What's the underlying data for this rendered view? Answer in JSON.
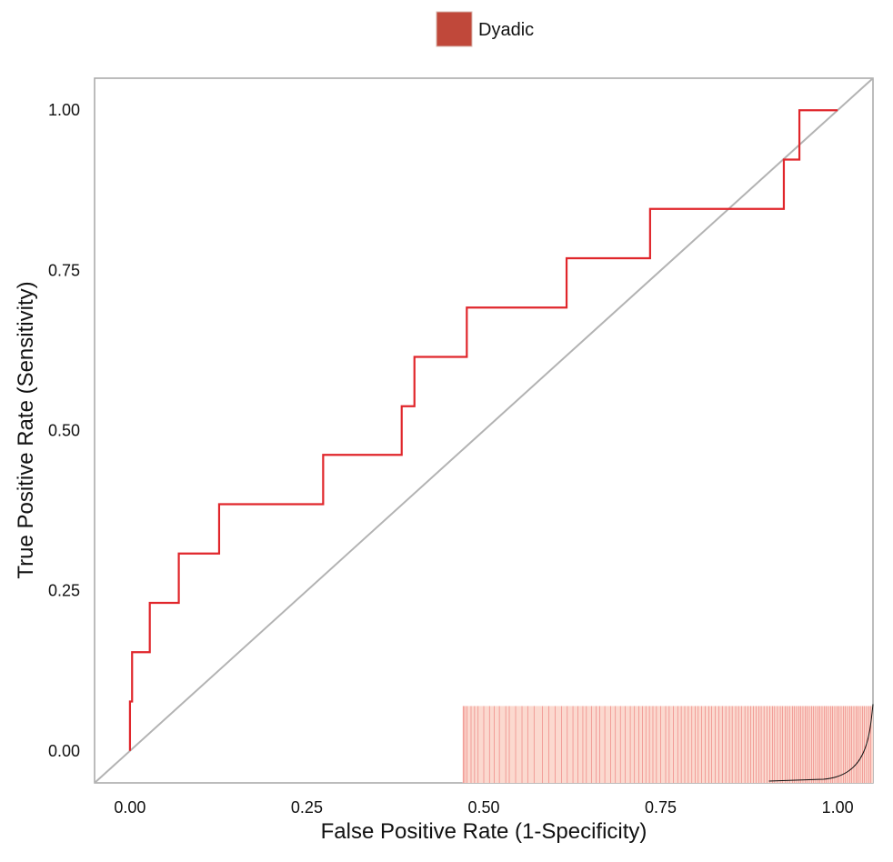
{
  "chart_data": {
    "type": "line",
    "xlabel": "False Positive Rate (1-Specificity)",
    "ylabel": "True Positive Rate (Sensitivity)",
    "xlim": [
      -0.05,
      1.05
    ],
    "ylim": [
      -0.05,
      1.05
    ],
    "x_ticks": [
      0.0,
      0.25,
      0.5,
      0.75,
      1.0
    ],
    "x_tick_labels": [
      "0.00",
      "0.25",
      "0.50",
      "0.75",
      "1.00"
    ],
    "y_ticks": [
      0.0,
      0.25,
      0.5,
      0.75,
      1.0
    ],
    "y_tick_labels": [
      "0.00",
      "0.25",
      "0.50",
      "0.75",
      "1.00"
    ],
    "grid": false,
    "legend_position": "top-center",
    "legend": [
      {
        "name": "Dyadic",
        "color": "#c0483a"
      }
    ],
    "series": [
      {
        "name": "Dyadic",
        "color": "#e0262b",
        "points": [
          [
            0.0,
            0.0
          ],
          [
            0.0,
            0.077
          ],
          [
            0.003,
            0.077
          ],
          [
            0.003,
            0.154
          ],
          [
            0.028,
            0.154
          ],
          [
            0.028,
            0.231
          ],
          [
            0.069,
            0.231
          ],
          [
            0.069,
            0.308
          ],
          [
            0.126,
            0.308
          ],
          [
            0.126,
            0.385
          ],
          [
            0.273,
            0.385
          ],
          [
            0.273,
            0.462
          ],
          [
            0.384,
            0.462
          ],
          [
            0.384,
            0.538
          ],
          [
            0.402,
            0.538
          ],
          [
            0.402,
            0.615
          ],
          [
            0.476,
            0.615
          ],
          [
            0.476,
            0.692
          ],
          [
            0.617,
            0.692
          ],
          [
            0.617,
            0.769
          ],
          [
            0.735,
            0.769
          ],
          [
            0.735,
            0.846
          ],
          [
            0.924,
            0.846
          ],
          [
            0.924,
            0.923
          ],
          [
            0.946,
            0.923
          ],
          [
            0.946,
            1.0
          ],
          [
            1.0,
            1.0
          ]
        ]
      }
    ],
    "reference_line": {
      "from": [
        -0.05,
        -0.05
      ],
      "to": [
        1.05,
        1.05
      ],
      "color": "#b3b3b3"
    },
    "rug": {
      "fill_color": "#fbd9cf",
      "line_color": "#e0262b",
      "x_range": [
        0.47,
        1.05
      ],
      "y_range": [
        -0.05,
        0.07
      ],
      "positions": [
        0.471,
        0.473,
        0.476,
        0.482,
        0.487,
        0.492,
        0.5,
        0.508,
        0.515,
        0.522,
        0.531,
        0.536,
        0.545,
        0.554,
        0.562,
        0.571,
        0.583,
        0.592,
        0.601,
        0.61,
        0.618,
        0.626,
        0.633,
        0.64,
        0.645,
        0.652,
        0.659,
        0.664,
        0.671,
        0.679,
        0.686,
        0.693,
        0.7,
        0.707,
        0.713,
        0.719,
        0.724,
        0.729,
        0.734,
        0.739,
        0.744,
        0.75,
        0.757,
        0.762,
        0.768,
        0.774,
        0.779,
        0.784,
        0.789,
        0.794,
        0.799,
        0.803,
        0.808,
        0.813,
        0.818,
        0.822,
        0.827,
        0.832,
        0.837,
        0.842,
        0.847,
        0.851,
        0.856,
        0.86,
        0.864,
        0.869,
        0.873,
        0.877,
        0.881,
        0.885,
        0.889,
        0.892,
        0.896,
        0.9,
        0.904,
        0.908,
        0.911,
        0.915,
        0.919,
        0.922,
        0.926,
        0.929,
        0.932,
        0.936,
        0.939,
        0.942,
        0.945,
        0.948,
        0.951,
        0.954,
        0.957,
        0.96,
        0.963,
        0.966,
        0.969,
        0.972,
        0.975,
        0.978,
        0.981,
        0.984,
        0.987,
        0.99,
        0.993,
        0.996,
        0.999,
        1.002,
        1.005,
        1.008,
        1.011,
        1.014,
        1.017,
        1.02,
        1.023,
        1.026,
        1.029,
        1.032,
        1.035,
        1.038,
        1.041,
        1.044,
        1.047
      ],
      "density_color": "#111111"
    }
  }
}
